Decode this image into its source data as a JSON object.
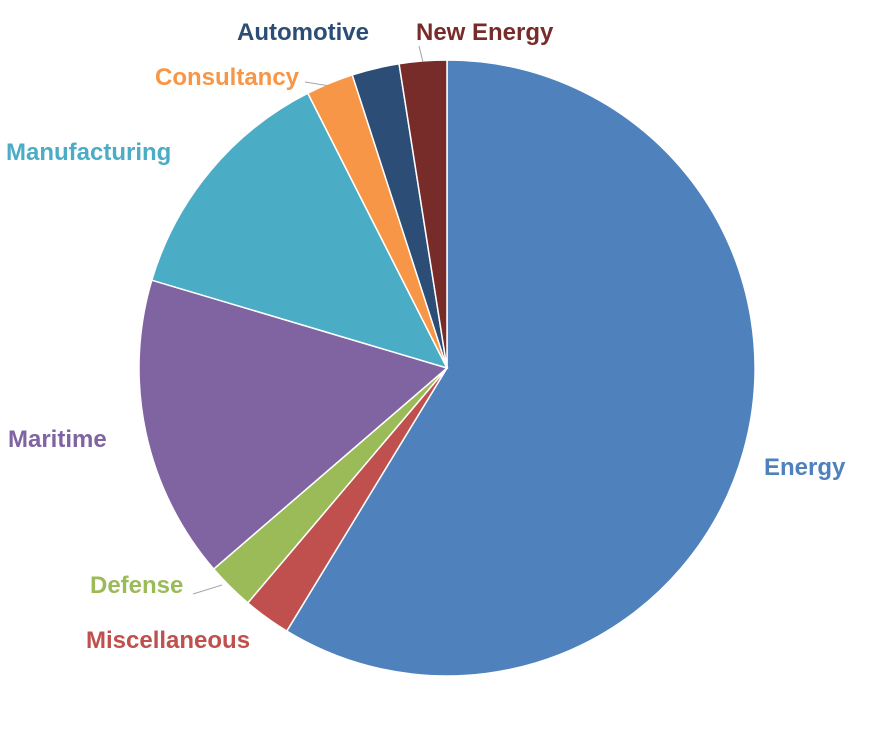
{
  "chart_data": {
    "type": "pie",
    "title": "",
    "categories": [
      "Energy",
      "Miscellaneous",
      "Defense",
      "Maritime",
      "Manufacturing",
      "Consultancy",
      "Automotive",
      "New Energy"
    ],
    "values": [
      59,
      2.5,
      2.5,
      16,
      13,
      2.5,
      2.5,
      2.5
    ],
    "colors": [
      "#4F81BD",
      "#C0504D",
      "#9BBB59",
      "#8064A2",
      "#4BACC6",
      "#F79646",
      "#2C4D75",
      "#772C2A"
    ],
    "start_angle_deg": 0,
    "direction": "clockwise",
    "legend": "none",
    "data_labels": "category names outside slices"
  }
}
